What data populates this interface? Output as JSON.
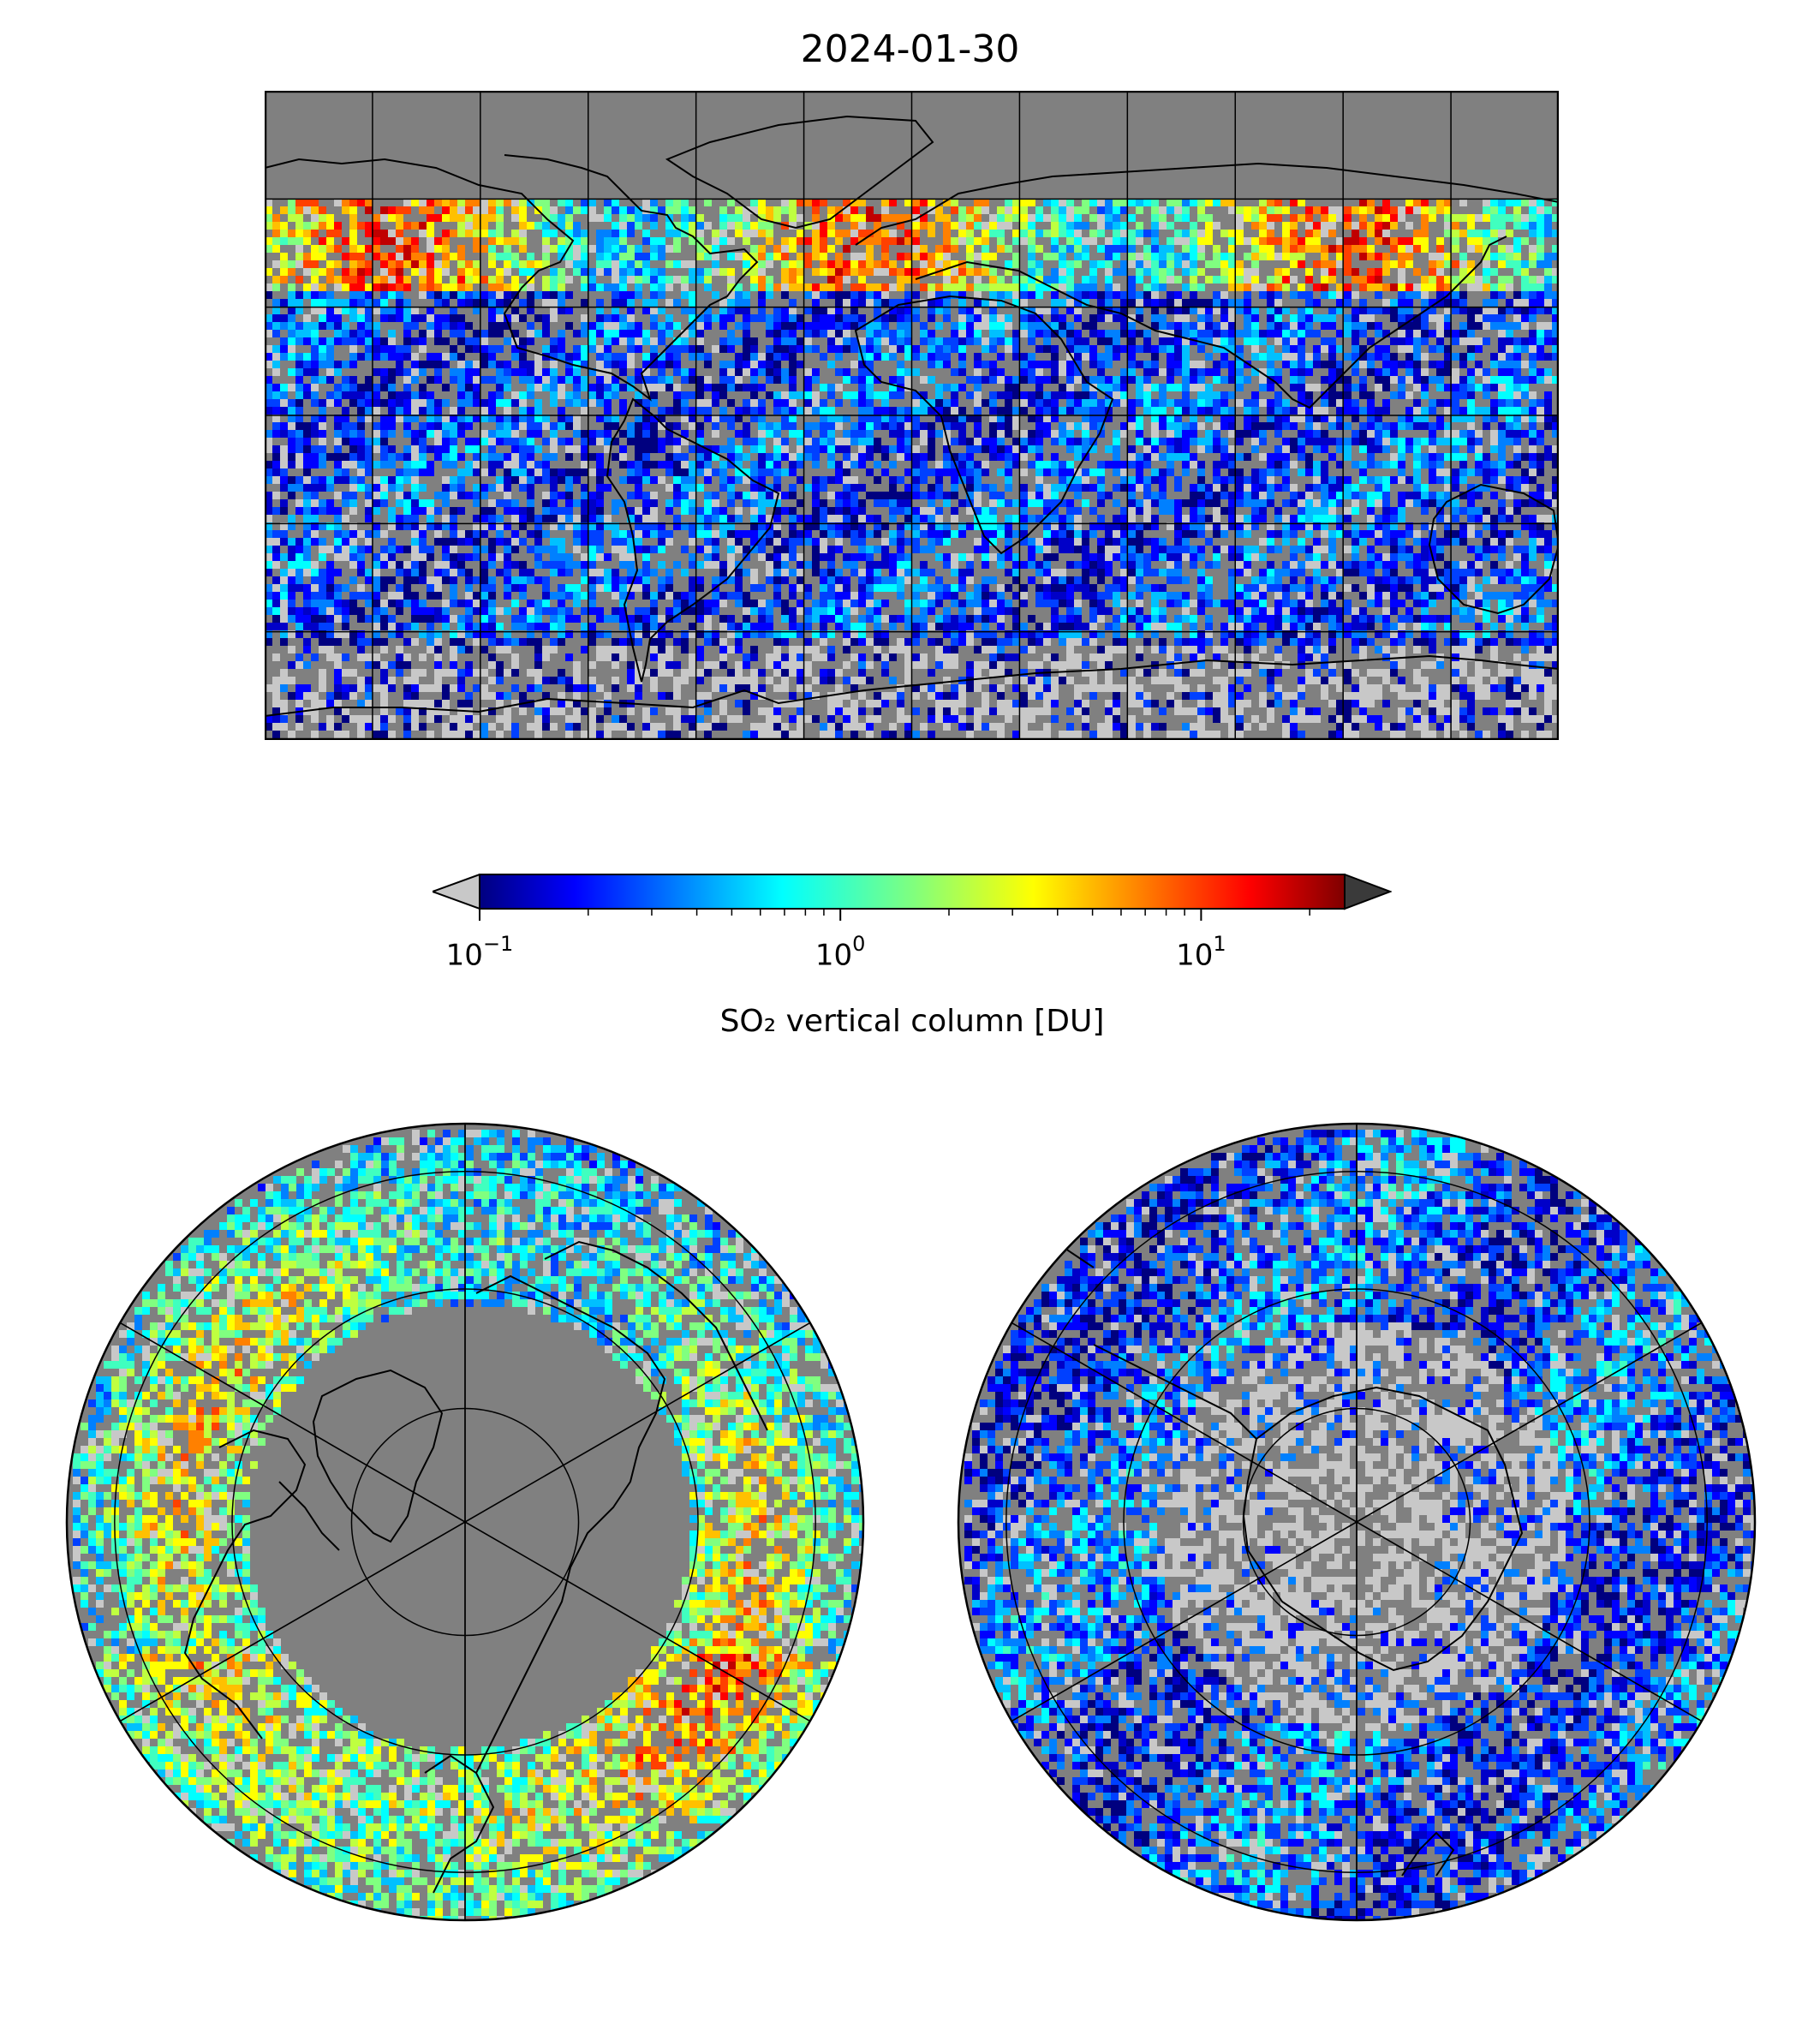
{
  "title": "2024-01-30",
  "colorbar": {
    "label": "SO₂ vertical column [DU]",
    "scale": "log",
    "min": 0.1,
    "max": 25,
    "ticks": [
      {
        "value": 0.1,
        "base": "10",
        "exp": "−1"
      },
      {
        "value": 1,
        "base": "10",
        "exp": "0"
      },
      {
        "value": 10,
        "base": "10",
        "exp": "1"
      }
    ],
    "colormap": "jet",
    "under_color": "#c8c8c8",
    "over_color": "#3a3a3a",
    "extend": "both"
  },
  "maps": [
    {
      "name": "global",
      "projection": "plate-carree",
      "ocean_color": "#808080",
      "coastline_color": "#000000",
      "gridlines": true
    },
    {
      "name": "north-polar",
      "projection": "north-polar-stereographic",
      "ocean_color": "#808080",
      "coastline_color": "#000000",
      "gridlines": true
    },
    {
      "name": "south-polar",
      "projection": "south-polar-stereographic",
      "ocean_color": "#808080",
      "coastline_color": "#000000",
      "gridlines": true
    }
  ],
  "colors": {
    "no_data": "#808080",
    "below_range": "#c8c8c8",
    "frame": "#000000"
  }
}
